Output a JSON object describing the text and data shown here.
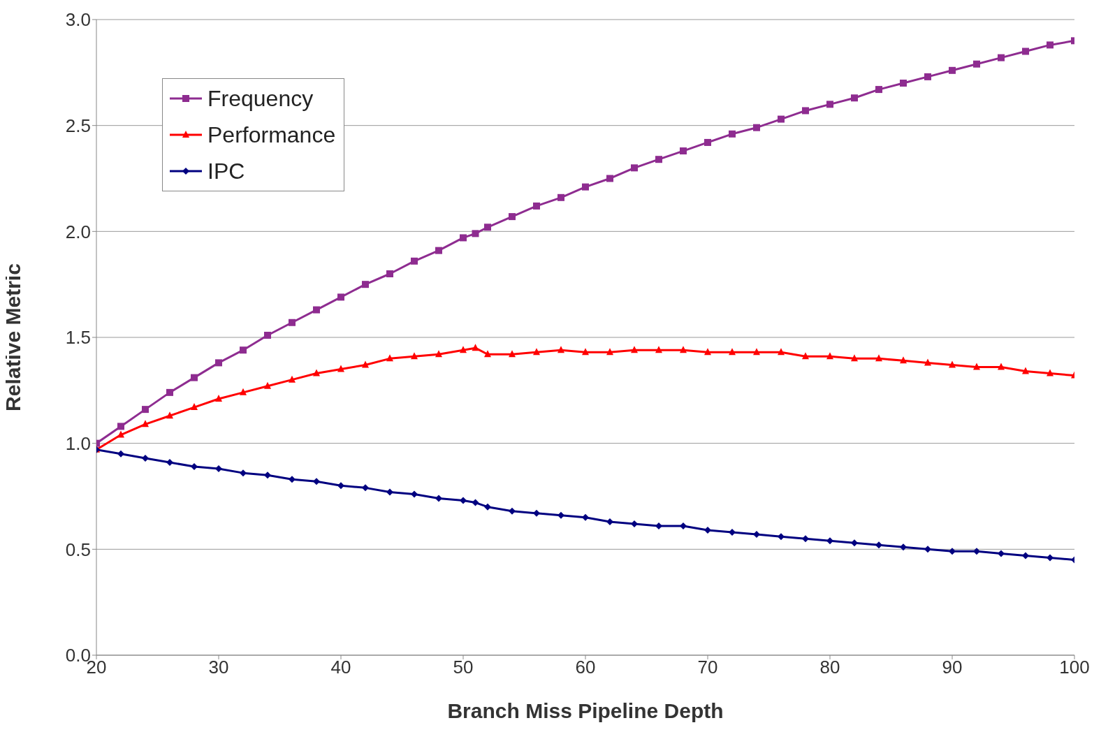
{
  "chart_data": {
    "type": "line",
    "xlabel": "Branch Miss Pipeline Depth",
    "ylabel": "Relative Metric",
    "x": [
      20,
      22,
      24,
      26,
      28,
      30,
      32,
      34,
      36,
      38,
      40,
      42,
      44,
      46,
      48,
      50,
      51,
      52,
      54,
      56,
      58,
      60,
      62,
      64,
      66,
      68,
      70,
      72,
      74,
      76,
      78,
      80,
      82,
      84,
      86,
      88,
      90,
      92,
      94,
      96,
      98,
      100
    ],
    "series": [
      {
        "name": "Frequency",
        "color": "#8e2c90",
        "marker": "square",
        "values": [
          1.0,
          1.08,
          1.16,
          1.24,
          1.31,
          1.38,
          1.44,
          1.51,
          1.57,
          1.63,
          1.69,
          1.75,
          1.8,
          1.86,
          1.91,
          1.97,
          1.99,
          2.02,
          2.07,
          2.12,
          2.16,
          2.21,
          2.25,
          2.3,
          2.34,
          2.38,
          2.42,
          2.46,
          2.49,
          2.53,
          2.57,
          2.6,
          2.63,
          2.67,
          2.7,
          2.73,
          2.76,
          2.79,
          2.82,
          2.85,
          2.88,
          2.9
        ]
      },
      {
        "name": "Performance",
        "color": "#ff0000",
        "marker": "triangle",
        "values": [
          0.97,
          1.04,
          1.09,
          1.13,
          1.17,
          1.21,
          1.24,
          1.27,
          1.3,
          1.33,
          1.35,
          1.37,
          1.4,
          1.41,
          1.42,
          1.44,
          1.45,
          1.42,
          1.42,
          1.43,
          1.44,
          1.43,
          1.43,
          1.44,
          1.44,
          1.44,
          1.43,
          1.43,
          1.43,
          1.43,
          1.41,
          1.41,
          1.4,
          1.4,
          1.39,
          1.38,
          1.37,
          1.36,
          1.36,
          1.34,
          1.33,
          1.32
        ]
      },
      {
        "name": "IPC",
        "color": "#000080",
        "marker": "diamond",
        "values": [
          0.97,
          0.95,
          0.93,
          0.91,
          0.89,
          0.88,
          0.86,
          0.85,
          0.83,
          0.82,
          0.8,
          0.79,
          0.77,
          0.76,
          0.74,
          0.73,
          0.72,
          0.7,
          0.68,
          0.67,
          0.66,
          0.65,
          0.63,
          0.62,
          0.61,
          0.61,
          0.59,
          0.58,
          0.57,
          0.56,
          0.55,
          0.54,
          0.53,
          0.52,
          0.51,
          0.5,
          0.49,
          0.49,
          0.48,
          0.47,
          0.46,
          0.45
        ]
      }
    ],
    "xlim": [
      20,
      100
    ],
    "xticks": [
      20,
      30,
      40,
      50,
      60,
      70,
      80,
      90,
      100
    ],
    "ylim": [
      0,
      3
    ],
    "yticks": [
      {
        "value": 0,
        "label": "0.0"
      },
      {
        "value": 0.5,
        "label": "0.5"
      },
      {
        "value": 1,
        "label": "1.0"
      },
      {
        "value": 1.5,
        "label": "1.5"
      },
      {
        "value": 2,
        "label": "2.0"
      },
      {
        "value": 2.5,
        "label": "2.5"
      },
      {
        "value": 3,
        "label": "3.0"
      }
    ],
    "grid": "y",
    "legend": "top left",
    "line_style": "solid"
  }
}
